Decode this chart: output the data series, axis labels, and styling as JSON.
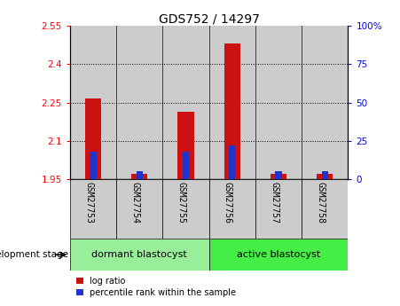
{
  "title": "GDS752 / 14297",
  "samples": [
    "GSM27753",
    "GSM27754",
    "GSM27755",
    "GSM27756",
    "GSM27757",
    "GSM27758"
  ],
  "log_ratio_values": [
    2.265,
    1.97,
    2.215,
    2.48,
    1.97,
    1.97
  ],
  "percentile_values": [
    18,
    5,
    18,
    22,
    5,
    5
  ],
  "ylim_left": [
    1.95,
    2.55
  ],
  "ylim_right": [
    0,
    100
  ],
  "yticks_left": [
    1.95,
    2.1,
    2.25,
    2.4,
    2.55
  ],
  "yticks_right": [
    0,
    25,
    50,
    75,
    100
  ],
  "ytick_labels_left": [
    "1.95",
    "2.1",
    "2.25",
    "2.4",
    "2.55"
  ],
  "ytick_labels_right": [
    "0",
    "25",
    "50",
    "75",
    "100%"
  ],
  "groups": [
    {
      "label": "dormant blastocyst",
      "indices": [
        0,
        1,
        2
      ],
      "color": "#99ee99"
    },
    {
      "label": "active blastocyst",
      "indices": [
        3,
        4,
        5
      ],
      "color": "#44ee44"
    }
  ],
  "group_label": "development stage",
  "bar_width": 0.35,
  "log_ratio_color": "#cc1111",
  "percentile_color": "#2233cc",
  "bar_bg_color": "#cccccc",
  "title_fontsize": 10,
  "tick_fontsize": 7.5,
  "legend_fontsize": 7,
  "sample_fontsize": 7
}
